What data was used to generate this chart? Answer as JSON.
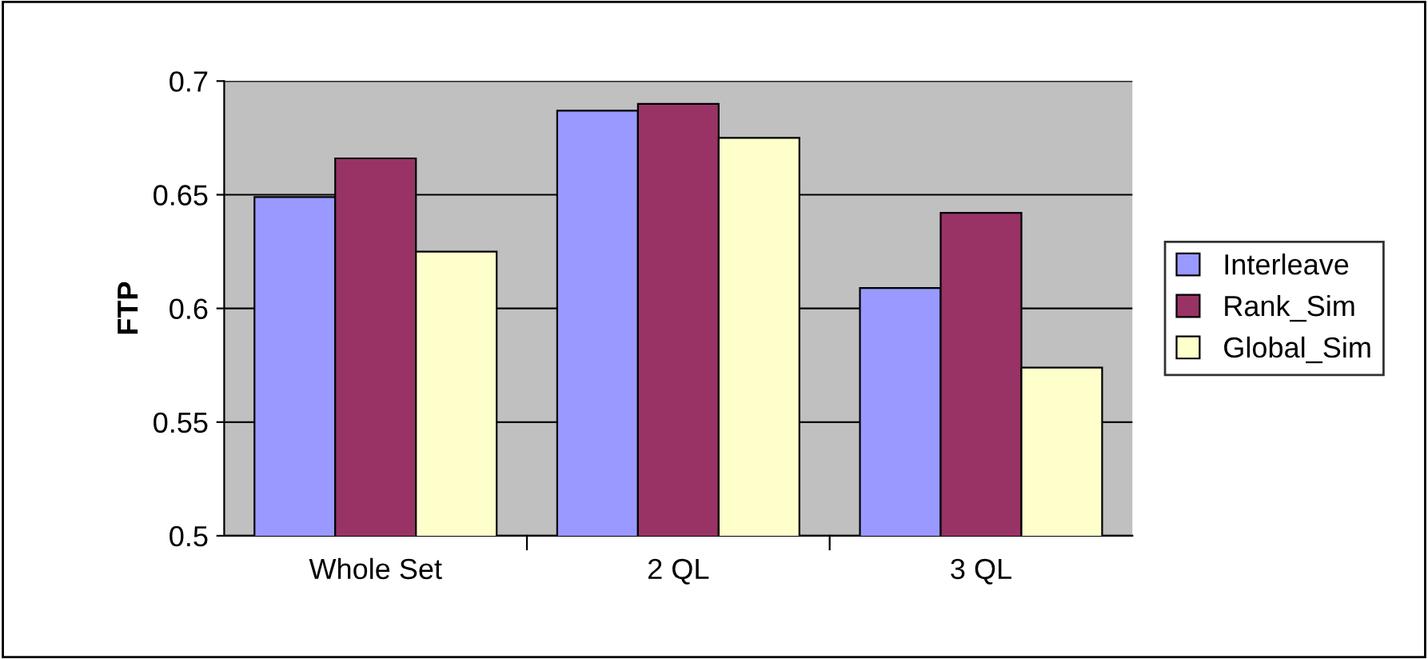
{
  "chart_data": {
    "type": "bar",
    "ylabel": "FTP",
    "categories": [
      "Whole Set",
      "2 QL",
      "3 QL"
    ],
    "series": [
      {
        "name": "Interleave",
        "color": "#9999ff",
        "values": [
          0.649,
          0.687,
          0.609
        ]
      },
      {
        "name": "Rank_Sim",
        "color": "#993366",
        "values": [
          0.666,
          0.69,
          0.642
        ]
      },
      {
        "name": "Global_Sim",
        "color": "#ffffcc",
        "values": [
          0.625,
          0.675,
          0.574
        ]
      }
    ],
    "ylim": [
      0.5,
      0.7
    ],
    "yticks": [
      0.5,
      0.55,
      0.6,
      0.65,
      0.7
    ],
    "grid": "y",
    "legend": "right"
  }
}
